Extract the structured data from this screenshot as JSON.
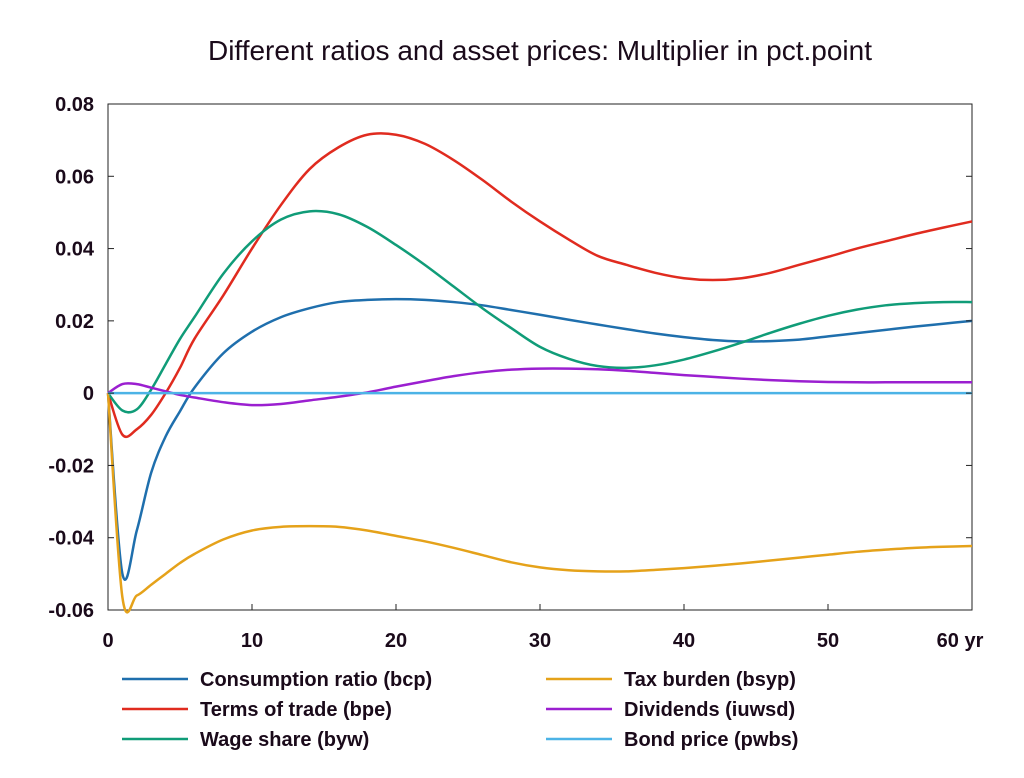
{
  "chart_data": {
    "type": "line",
    "title": "Different ratios and asset prices: Multiplier in pct.point",
    "xlabel": "",
    "ylabel": "",
    "xlim": [
      0,
      60
    ],
    "ylim": [
      -0.06,
      0.08
    ],
    "x_ticks": [
      0,
      10,
      20,
      30,
      40,
      50,
      60
    ],
    "x_tick_labels": [
      "0",
      "10",
      "20",
      "30",
      "40",
      "50",
      "60 yr"
    ],
    "y_ticks": [
      -0.06,
      -0.04,
      -0.02,
      0,
      0.02,
      0.04,
      0.06,
      0.08
    ],
    "y_tick_labels": [
      "-0.06",
      "-0.04",
      "-0.02",
      "0",
      "0.02",
      "0.04",
      "0.06",
      "0.08"
    ],
    "grid": false,
    "legend_position": "bottom",
    "x": [
      0,
      1,
      2,
      3,
      4,
      5,
      6,
      8,
      10,
      12,
      14,
      16,
      18,
      20,
      22,
      24,
      26,
      28,
      30,
      32,
      34,
      36,
      38,
      40,
      42,
      44,
      46,
      48,
      50,
      52,
      54,
      56,
      58,
      60
    ],
    "series": [
      {
        "name": "Consumption ratio (bcp)",
        "color": "#1f6fad",
        "values": [
          0,
          -0.05,
          -0.038,
          -0.022,
          -0.012,
          -0.005,
          0.0015,
          0.011,
          0.017,
          0.021,
          0.0235,
          0.0252,
          0.0258,
          0.026,
          0.0258,
          0.0252,
          0.0243,
          0.023,
          0.0217,
          0.0203,
          0.019,
          0.0177,
          0.0165,
          0.0155,
          0.0147,
          0.0143,
          0.0144,
          0.0148,
          0.0157,
          0.0166,
          0.0175,
          0.0184,
          0.0192,
          0.02
        ]
      },
      {
        "name": "Terms of trade (bpe)",
        "color": "#e02b1f",
        "values": [
          0,
          -0.0115,
          -0.01,
          -0.006,
          0.0,
          0.007,
          0.015,
          0.027,
          0.04,
          0.052,
          0.062,
          0.068,
          0.0715,
          0.0715,
          0.069,
          0.0645,
          0.059,
          0.053,
          0.0475,
          0.0425,
          0.038,
          0.0355,
          0.0333,
          0.0318,
          0.0313,
          0.0318,
          0.0333,
          0.0355,
          0.0377,
          0.04,
          0.042,
          0.044,
          0.0458,
          0.0475
        ]
      },
      {
        "name": "Wage share (byw)",
        "color": "#109c78",
        "values": [
          0,
          -0.0048,
          -0.0045,
          0.001,
          0.008,
          0.015,
          0.021,
          0.033,
          0.042,
          0.048,
          0.0503,
          0.0495,
          0.046,
          0.041,
          0.0355,
          0.0295,
          0.0235,
          0.018,
          0.0128,
          0.0095,
          0.0075,
          0.007,
          0.0077,
          0.0093,
          0.0115,
          0.014,
          0.0167,
          0.0192,
          0.0214,
          0.0231,
          0.0243,
          0.0249,
          0.0252,
          0.0252
        ]
      },
      {
        "name": "Tax burden (bsyp)",
        "color": "#e5a21a",
        "values": [
          0,
          -0.0565,
          -0.056,
          -0.053,
          -0.05,
          -0.047,
          -0.0445,
          -0.0405,
          -0.038,
          -0.037,
          -0.0368,
          -0.037,
          -0.038,
          -0.0395,
          -0.041,
          -0.0428,
          -0.0448,
          -0.0468,
          -0.0482,
          -0.049,
          -0.0493,
          -0.0493,
          -0.0489,
          -0.0484,
          -0.0478,
          -0.0471,
          -0.0463,
          -0.0455,
          -0.0447,
          -0.0439,
          -0.0433,
          -0.0428,
          -0.0425,
          -0.0423
        ]
      },
      {
        "name": "Dividends (iuwsd)",
        "color": "#9b1fd0",
        "values": [
          0,
          0.0025,
          0.0025,
          0.0015,
          0.0005,
          -0.0005,
          -0.0012,
          -0.0025,
          -0.0033,
          -0.003,
          -0.002,
          -0.001,
          0.0002,
          0.0018,
          0.0033,
          0.0047,
          0.0058,
          0.0065,
          0.0068,
          0.0068,
          0.0066,
          0.0062,
          0.0056,
          0.005,
          0.0045,
          0.004,
          0.0036,
          0.0033,
          0.0031,
          0.003,
          0.003,
          0.003,
          0.003,
          0.003
        ]
      },
      {
        "name": "Bond price (pwbs)",
        "color": "#4cb3e6",
        "values": [
          0,
          0,
          0,
          0,
          0,
          0,
          0,
          0,
          0,
          0,
          0,
          0,
          0,
          0,
          0,
          0,
          0,
          0,
          0,
          0,
          0,
          0,
          0,
          0,
          0,
          0,
          0,
          0,
          0,
          0,
          0,
          0,
          0,
          0
        ]
      }
    ]
  }
}
